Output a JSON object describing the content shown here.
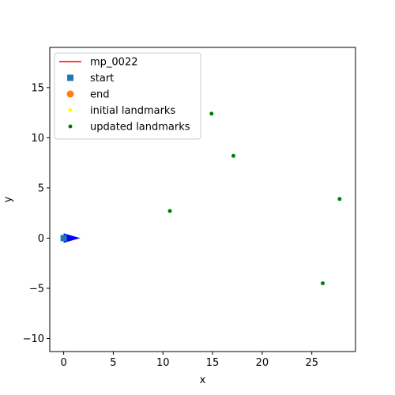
{
  "chart_data": {
    "type": "scatter",
    "xlabel": "x",
    "ylabel": "y",
    "xlim": [
      -1.4,
      29.4
    ],
    "ylim": [
      -11.3,
      19.0
    ],
    "xticks": [
      0,
      5,
      10,
      15,
      20,
      25
    ],
    "yticks": [
      -10,
      -5,
      0,
      5,
      10,
      15
    ],
    "xtick_labels": [
      "0",
      "5",
      "10",
      "15",
      "20",
      "25"
    ],
    "ytick_labels": [
      "−10",
      "−5",
      "0",
      "5",
      "10",
      "15"
    ],
    "grid": false,
    "legend_position": "top-left",
    "series": [
      {
        "name": "mp_0022",
        "kind": "line",
        "color": "#ff0000",
        "x": [],
        "y": []
      },
      {
        "name": "start",
        "kind": "square",
        "color": "#1f77b4",
        "x": [
          0
        ],
        "y": [
          0
        ]
      },
      {
        "name": "end",
        "kind": "circle",
        "color": "#ff7f0e",
        "x": [],
        "y": []
      },
      {
        "name": "initial landmarks",
        "kind": "dot",
        "color": "#ffff00",
        "x": [],
        "y": []
      },
      {
        "name": "updated landmarks",
        "kind": "dot",
        "color": "#008000",
        "x": [
          10.7,
          14.9,
          17.1,
          27.8,
          26.1
        ],
        "y": [
          2.7,
          12.4,
          8.2,
          3.9,
          -4.5
        ]
      }
    ],
    "pose_arrow": {
      "x": 0,
      "y": 0,
      "heading_deg": 0,
      "color": "#0000ff"
    }
  }
}
